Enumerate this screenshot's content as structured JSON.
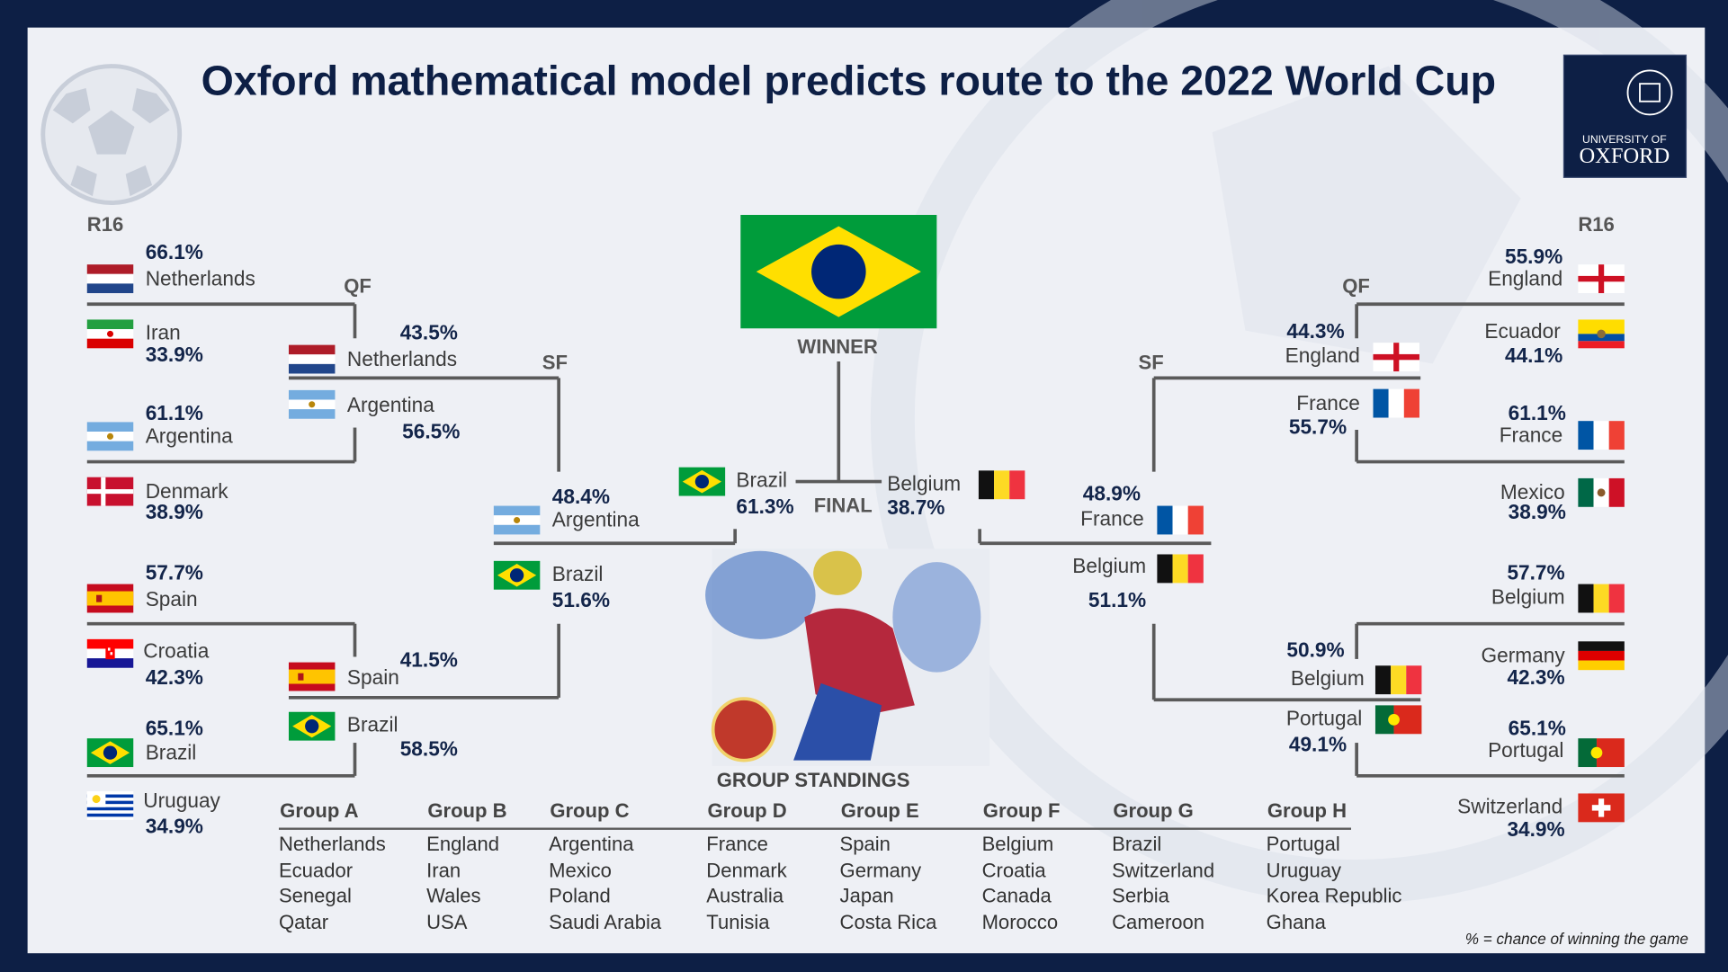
{
  "title": "Oxford mathematical model predicts route to the 2022 World Cup",
  "logo": {
    "line1": "UNIVERSITY OF",
    "line2": "OXFORD"
  },
  "rounds": {
    "r16_left": "R16",
    "r16_right": "R16",
    "qf_left": "QF",
    "qf_right": "QF",
    "sf_left": "SF",
    "sf_right": "SF",
    "winner": "WINNER",
    "final": "FINAL"
  },
  "bracket": [
    {
      "team": "Netherlands",
      "pct": "66.1%"
    },
    {
      "team": "Iran",
      "pct": "33.9%"
    },
    {
      "team": "Argentina",
      "pct": "61.1%"
    },
    {
      "team": "Denmark",
      "pct": "38.9%"
    },
    {
      "team": "Spain",
      "pct": "57.7%"
    },
    {
      "team": "Croatia",
      "pct": "42.3%"
    },
    {
      "team": "Brazil",
      "pct": "65.1%"
    },
    {
      "team": "Uruguay",
      "pct": "34.9%"
    },
    {
      "team": "Netherlands",
      "pct": "43.5%"
    },
    {
      "team": "Argentina",
      "pct": "56.5%"
    },
    {
      "team": "Spain",
      "pct": "41.5%"
    },
    {
      "team": "Brazil",
      "pct": "58.5%"
    },
    {
      "team": "Argentina",
      "pct": "48.4%"
    },
    {
      "team": "Brazil",
      "pct": "51.6%"
    },
    {
      "team": "Brazil",
      "pct": "61.3%"
    },
    {
      "team": "Belgium",
      "pct": "38.7%"
    },
    {
      "team": "France",
      "pct": "48.9%"
    },
    {
      "team": "Belgium",
      "pct": "51.1%"
    },
    {
      "team": "England",
      "pct": "44.3%"
    },
    {
      "team": "France",
      "pct": "55.7%"
    },
    {
      "team": "Belgium",
      "pct": "50.9%"
    },
    {
      "team": "Portugal",
      "pct": "49.1%"
    },
    {
      "team": "England",
      "pct": "55.9%"
    },
    {
      "team": "Ecuador",
      "pct": "44.1%"
    },
    {
      "team": "France",
      "pct": "61.1%"
    },
    {
      "team": "Mexico",
      "pct": "38.9%"
    },
    {
      "team": "Belgium",
      "pct": "57.7%"
    },
    {
      "team": "Germany",
      "pct": "42.3%"
    },
    {
      "team": "Portugal",
      "pct": "65.1%"
    },
    {
      "team": "Switzerland",
      "pct": "34.9%"
    }
  ],
  "groups_heading": "GROUP STANDINGS",
  "groups": [
    {
      "name": "Group A",
      "teams": [
        "Netherlands",
        "Ecuador",
        "Senegal",
        "Qatar"
      ]
    },
    {
      "name": "Group B",
      "teams": [
        "England",
        "Iran",
        "Wales",
        "USA"
      ]
    },
    {
      "name": "Group C",
      "teams": [
        "Argentina",
        "Mexico",
        "Poland",
        "Saudi Arabia"
      ]
    },
    {
      "name": "Group D",
      "teams": [
        "France",
        "Denmark",
        "Australia",
        "Tunisia"
      ]
    },
    {
      "name": "Group E",
      "teams": [
        "Spain",
        "Germany",
        "Japan",
        "Costa Rica"
      ]
    },
    {
      "name": "Group F",
      "teams": [
        "Belgium",
        "Croatia",
        "Canada",
        "Morocco"
      ]
    },
    {
      "name": "Group G",
      "teams": [
        "Brazil",
        "Switzerland",
        "Serbia",
        "Cameroon"
      ]
    },
    {
      "name": "Group H",
      "teams": [
        "Portugal",
        "Uruguay",
        "Korea Republic",
        "Ghana"
      ]
    }
  ],
  "footnote": "% = chance of winning the game"
}
